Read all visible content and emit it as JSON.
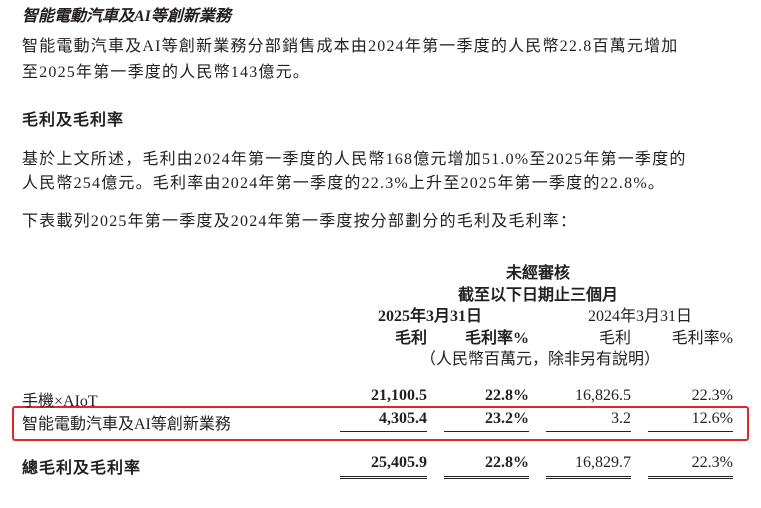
{
  "section_title": "智能電動汽車及AI等創新業務",
  "para1": [
    "智能電動汽車及AI等創新業務分部銷售成本由2024年第一季度的人民幣22.8百萬元增加",
    "至2025年第一季度的人民幣143億元。"
  ],
  "heading2": "毛利及毛利率",
  "para2": [
    "基於上文所述，毛利由2024年第一季度的人民幣168億元增加51.0%至2025年第一季度的",
    "人民幣254億元。毛利率由2024年第一季度的22.3%上升至2025年第一季度的22.8%。"
  ],
  "para3": "下表載列2025年第一季度及2024年第一季度按分部劃分的毛利及毛利率：",
  "table": {
    "header_audit": "未經審核",
    "header_period": "截至以下日期止三個月",
    "date_2025": "2025年3月31日",
    "date_2024": "2024年3月31日",
    "col_headers": [
      "毛利",
      "毛利率%",
      "毛利",
      "毛利率%"
    ],
    "unit_note": "（人民幣百萬元，除非另有說明）",
    "rows": [
      {
        "label": "手機×AIoT",
        "values": [
          "21,100.5",
          "22.8%",
          "16,826.5",
          "22.3%"
        ]
      },
      {
        "label": "智能電動汽車及AI等創新業務",
        "values": [
          "4,305.4",
          "23.2%",
          "3.2",
          "12.6%"
        ],
        "highlighted": true
      },
      {
        "label": "總毛利及毛利率",
        "values": [
          "25,405.9",
          "22.8%",
          "16,829.7",
          "22.3%"
        ]
      }
    ]
  },
  "colors": {
    "highlight_border": "#e0252b",
    "text": "#231f20"
  }
}
